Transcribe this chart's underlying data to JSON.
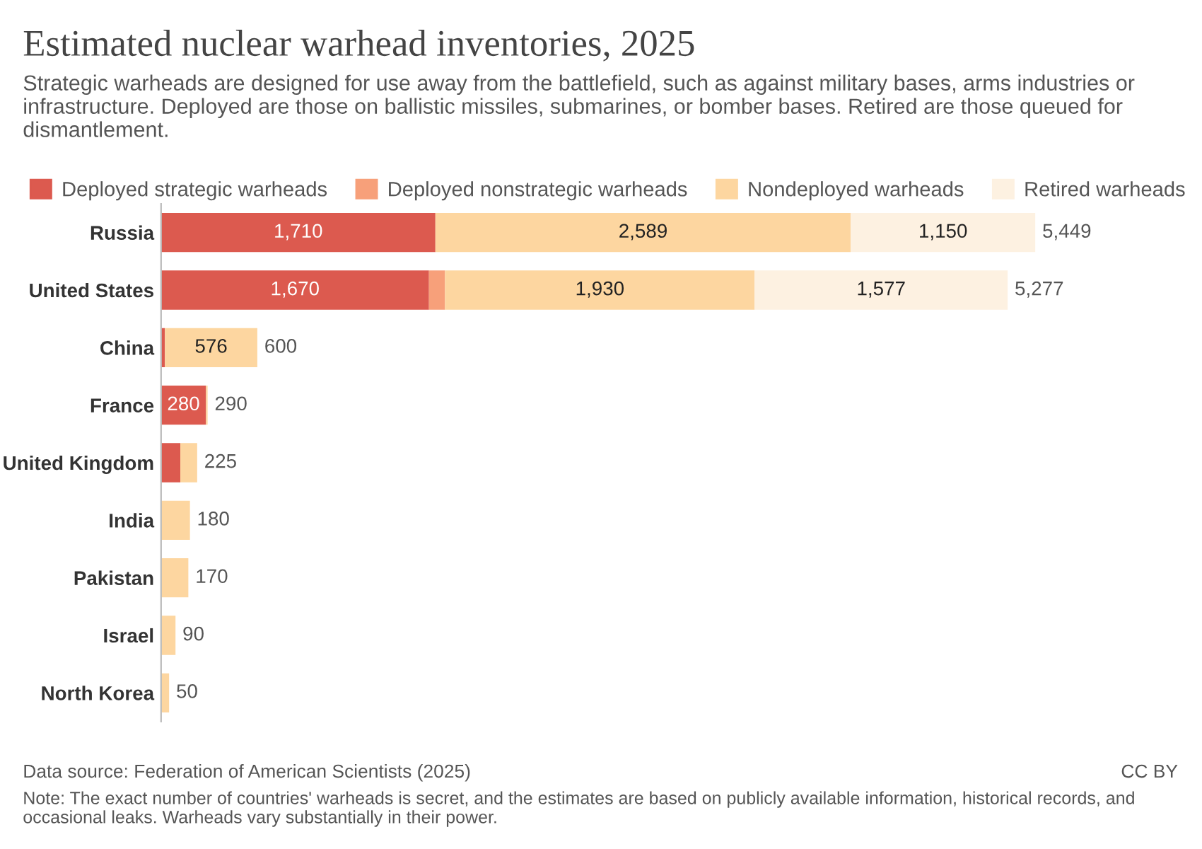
{
  "chart_data": {
    "type": "bar",
    "orientation": "horizontal",
    "stacked": true,
    "title": "Estimated nuclear warhead inventories, 2025",
    "subtitle": "Strategic warheads are designed for use away from the battlefield, such as against military bases, arms industries or infrastructure. Deployed are those on ballistic missiles, submarines, or bomber bases. Retired are those queued for dismantlement.",
    "categories": [
      "Russia",
      "United States",
      "China",
      "France",
      "United Kingdom",
      "India",
      "Pakistan",
      "Israel",
      "North Korea"
    ],
    "series": [
      {
        "name": "Deployed strategic warheads",
        "color": "#dc5a4f",
        "values": [
          1710,
          1670,
          24,
          280,
          120,
          0,
          0,
          0,
          0
        ],
        "value_labels": [
          "1,710",
          "1,670",
          null,
          "280",
          null,
          null,
          null,
          null,
          null
        ]
      },
      {
        "name": "Deployed nonstrategic warheads",
        "color": "#f7a07a",
        "values": [
          0,
          100,
          0,
          0,
          0,
          0,
          0,
          0,
          0
        ],
        "value_labels": [
          null,
          null,
          null,
          null,
          null,
          null,
          null,
          null,
          null
        ]
      },
      {
        "name": "Nondeployed warheads",
        "color": "#fdd6a0",
        "values": [
          2589,
          1930,
          576,
          10,
          105,
          180,
          170,
          90,
          50
        ],
        "value_labels": [
          "2,589",
          "1,930",
          "576",
          null,
          null,
          null,
          null,
          null,
          null
        ]
      },
      {
        "name": "Retired warheads",
        "color": "#fdf1e1",
        "values": [
          1150,
          1577,
          0,
          0,
          0,
          0,
          0,
          0,
          0
        ],
        "value_labels": [
          "1,150",
          "1,577",
          null,
          null,
          null,
          null,
          null,
          null,
          null
        ]
      }
    ],
    "totals": [
      "5,449",
      "5,277",
      "600",
      "290",
      "225",
      "180",
      "170",
      "90",
      "50"
    ],
    "legend": "top left",
    "annotations": [
      "Data source: Federation of American Scientists (2025)",
      "CC BY",
      "Note: The exact number of countries' warheads is secret, and the estimates are based on publicly available information, historical records, and occasional leaks. Warheads vary substantially in their power."
    ]
  }
}
